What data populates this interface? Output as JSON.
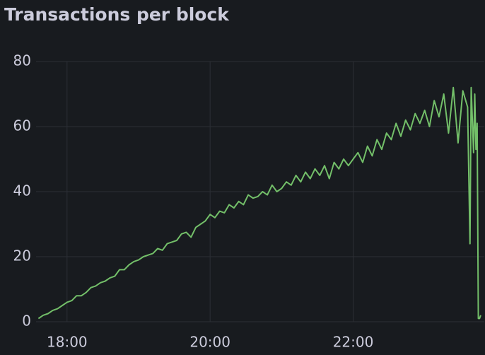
{
  "chart_data": {
    "type": "line",
    "title": "Transactions per block",
    "x": [
      "17:36",
      "17:40",
      "17:44",
      "17:48",
      "17:52",
      "17:56",
      "18:00",
      "18:04",
      "18:08",
      "18:12",
      "18:16",
      "18:20",
      "18:24",
      "18:28",
      "18:32",
      "18:36",
      "18:40",
      "18:44",
      "18:48",
      "18:52",
      "18:56",
      "19:00",
      "19:04",
      "19:08",
      "19:12",
      "19:16",
      "19:20",
      "19:24",
      "19:28",
      "19:32",
      "19:36",
      "19:40",
      "19:44",
      "19:48",
      "19:52",
      "19:56",
      "20:00",
      "20:04",
      "20:08",
      "20:12",
      "20:16",
      "20:20",
      "20:24",
      "20:28",
      "20:32",
      "20:36",
      "20:40",
      "20:44",
      "20:48",
      "20:52",
      "20:56",
      "21:00",
      "21:04",
      "21:08",
      "21:12",
      "21:16",
      "21:20",
      "21:24",
      "21:28",
      "21:32",
      "21:36",
      "21:40",
      "21:44",
      "21:48",
      "21:52",
      "21:56",
      "22:00",
      "22:04",
      "22:08",
      "22:12",
      "22:16",
      "22:20",
      "22:24",
      "22:28",
      "22:32",
      "22:36",
      "22:40",
      "22:44",
      "22:48",
      "22:52",
      "22:56",
      "23:00",
      "23:04",
      "23:08",
      "23:12",
      "23:16",
      "23:20",
      "23:24",
      "23:28",
      "23:32",
      "23:36",
      "23:38",
      "23:39",
      "23:41",
      "23:42",
      "23:43",
      "23:44",
      "23:45",
      "23:46",
      "23:47"
    ],
    "series": [
      {
        "name": "Transactions per block",
        "color": "#73bf69",
        "values": [
          1,
          2,
          2.5,
          3.5,
          4,
          5,
          6,
          6.5,
          8,
          8,
          9,
          10.5,
          11,
          12,
          12.5,
          13.5,
          14,
          16,
          16,
          17.5,
          18.5,
          19,
          20,
          20.5,
          21,
          22.5,
          22,
          24,
          24.5,
          25,
          27,
          27.5,
          26,
          29,
          30,
          31,
          33,
          32,
          34,
          33.5,
          36,
          35,
          37,
          36,
          39,
          38,
          38.5,
          40,
          39,
          42,
          40,
          41,
          43,
          42,
          45,
          43,
          46,
          44,
          47,
          45,
          48,
          44,
          49,
          47,
          50,
          48,
          50,
          52,
          49,
          54,
          51,
          56,
          53,
          58,
          56,
          61,
          57,
          62,
          59,
          64,
          61,
          65,
          60,
          68,
          63,
          70,
          58,
          72,
          55,
          71,
          66,
          24,
          72,
          52,
          70,
          53,
          61,
          1,
          1,
          2
        ]
      }
    ],
    "xlim": [
      "17:34",
      "23:50"
    ],
    "xticks": [
      "18:00",
      "20:00",
      "22:00"
    ],
    "ylim": [
      0,
      80
    ],
    "yticks": [
      0,
      20,
      40,
      60,
      80
    ],
    "grid": true
  }
}
